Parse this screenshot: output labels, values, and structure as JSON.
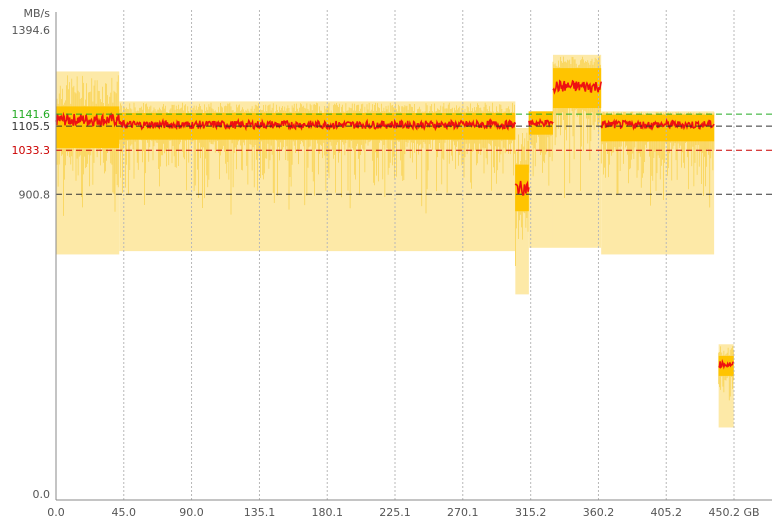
{
  "chart_data": {
    "type": "area",
    "unit_label": "MB/s",
    "xlabel": "",
    "x_ticks": [
      "0.0",
      "45.0",
      "90.0",
      "135.1",
      "180.1",
      "225.1",
      "270.1",
      "315.2",
      "360.2",
      "405.2",
      "450.2 GB"
    ],
    "x_tick_values": [
      0,
      45.0,
      90.0,
      135.1,
      180.1,
      225.1,
      270.1,
      315.2,
      360.2,
      405.2,
      450.2
    ],
    "xlim": [
      0,
      450.2
    ],
    "ylim": [
      0,
      1394.6
    ],
    "y_ticks": [
      "1394.6",
      "900.8",
      "0.0"
    ],
    "y_tick_values": [
      1394.6,
      900.8,
      0
    ],
    "reference_lines": [
      {
        "label": "1141.6",
        "value": 1141.6,
        "color": "#22aa22"
      },
      {
        "label": "1105.5",
        "value": 1105.5,
        "color": "#333333"
      },
      {
        "label": "1033.3",
        "value": 1033.3,
        "color": "#cc0000"
      },
      {
        "label": "",
        "value": 900.8,
        "color": "#333333"
      }
    ],
    "colors": {
      "max_band": "#fde9a7",
      "spike": "#f7cc3a",
      "core": "#ffc400",
      "average": "#ee1111",
      "grid": "#b8b8b8"
    },
    "segments": [
      {
        "x_start": 0,
        "x_end": 42,
        "avg": 1125,
        "core_low": 1040,
        "core_high": 1165,
        "band_low": 720,
        "band_high": 1270
      },
      {
        "x_start": 42,
        "x_end": 305,
        "avg": 1110,
        "core_low": 1065,
        "core_high": 1145,
        "band_low": 730,
        "band_high": 1180
      },
      {
        "x_start": 305,
        "x_end": 314,
        "avg": 920,
        "core_low": 850,
        "core_high": 990,
        "band_low": 600,
        "band_high": 1100
      },
      {
        "x_start": 314,
        "x_end": 330,
        "avg": 1115,
        "core_low": 1080,
        "core_high": 1150,
        "band_low": 740,
        "band_high": 1150
      },
      {
        "x_start": 330,
        "x_end": 362,
        "avg": 1225,
        "core_low": 1160,
        "core_high": 1280,
        "band_low": 740,
        "band_high": 1320
      },
      {
        "x_start": 362,
        "x_end": 437,
        "avg": 1110,
        "core_low": 1060,
        "core_high": 1140,
        "band_low": 720,
        "band_high": 1150
      },
      {
        "x_start": 440,
        "x_end": 450,
        "avg": 390,
        "core_low": 355,
        "core_high": 415,
        "band_low": 200,
        "band_high": 450
      }
    ]
  }
}
